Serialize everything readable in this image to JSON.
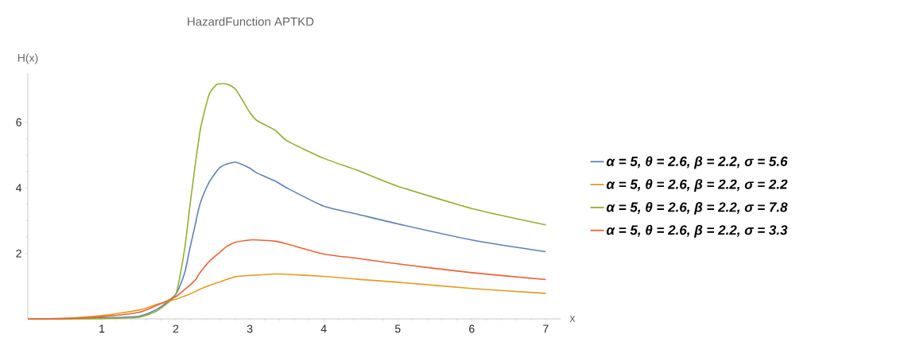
{
  "chart_data": {
    "type": "line",
    "title": "HazardFunction APTKD",
    "xlabel": "x",
    "ylabel": "H(x)",
    "xlim": [
      0,
      7.2
    ],
    "ylim": [
      0,
      7.5
    ],
    "xticks": [
      1,
      2,
      3,
      4,
      5,
      6,
      7
    ],
    "yticks": [
      2,
      4,
      6
    ],
    "grid": false,
    "legend": "right",
    "line_style": "solid",
    "marker": "none",
    "x": [
      0,
      0.5,
      1,
      1.5,
      1.75,
      2,
      2.12,
      2.19,
      2.27,
      2.3,
      2.34,
      2.45,
      2.55,
      2.59,
      2.68,
      2.81,
      3,
      3.1,
      3.35,
      3.5,
      4,
      4.45,
      5,
      6,
      7
    ],
    "series": [
      {
        "name": "α = 5, θ = 2.6, β = 2.2, σ = 5.6",
        "color": "#5e81b5",
        "values": [
          0,
          null,
          0.03,
          0.08,
          0.3,
          0.75,
          1.41,
          2.15,
          2.95,
          3.27,
          3.6,
          4.17,
          4.5,
          4.61,
          4.72,
          4.78,
          4.6,
          4.45,
          4.2,
          4.0,
          3.44,
          3.2,
          2.9,
          2.41,
          2.05
        ]
      },
      {
        "name": "α = 5, θ = 2.6, β = 2.2, σ = 2.2",
        "color": "#e19c24",
        "values": [
          0,
          0.02,
          0.1,
          0.27,
          0.45,
          0.6,
          0.7,
          0.76,
          0.84,
          0.88,
          0.92,
          1.02,
          1.1,
          1.12,
          1.2,
          1.29,
          1.33,
          1.34,
          1.37,
          1.36,
          1.3,
          1.21,
          1.12,
          0.93,
          0.78
        ]
      },
      {
        "name": "α = 5, θ = 2.6, β = 2.2, σ = 7.8",
        "color": "#8fb032",
        "values": [
          0,
          0,
          0.01,
          0.05,
          0.25,
          0.76,
          2.15,
          3.44,
          4.83,
          5.3,
          5.88,
          6.85,
          7.15,
          7.17,
          7.17,
          7.0,
          6.3,
          6.05,
          5.75,
          5.44,
          4.9,
          4.54,
          4.05,
          3.37,
          2.87
        ]
      },
      {
        "name": "α = 5, θ = 2.6, β = 2.2, σ = 3.3",
        "color": "#eb6235",
        "values": [
          0,
          0.01,
          0.07,
          0.2,
          0.42,
          0.68,
          0.9,
          1.03,
          1.2,
          1.32,
          1.45,
          1.75,
          1.95,
          2.02,
          2.2,
          2.34,
          2.41,
          2.41,
          2.37,
          2.29,
          1.98,
          1.85,
          1.68,
          1.41,
          1.2
        ]
      }
    ]
  }
}
